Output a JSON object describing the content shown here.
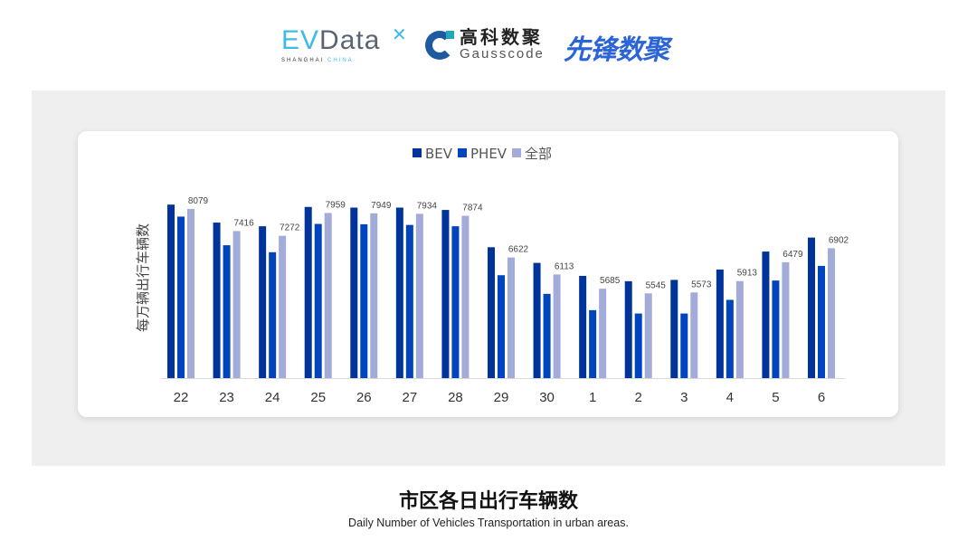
{
  "logos": {
    "evdata": {
      "name": "EVData",
      "tagline_a": "SHANGHAI",
      "tagline_b": "CHINA"
    },
    "gausscode": {
      "cn": "高科数聚",
      "en": "Gausscode"
    },
    "xianfeng": {
      "cn": "先锋数聚"
    }
  },
  "caption": {
    "title": "市区各日出行车辆数",
    "subtitle": "Daily Number of Vehicles Transportation in urban areas."
  },
  "chart_data": {
    "type": "bar",
    "title": "",
    "xlabel": "",
    "ylabel": "每万辆出行车辆数",
    "ylim": [
      3000,
      9000
    ],
    "grid": false,
    "legend_position": "top-center",
    "categories": [
      "22",
      "23",
      "24",
      "25",
      "26",
      "27",
      "28",
      "29",
      "30",
      "1",
      "2",
      "3",
      "4",
      "5",
      "6"
    ],
    "series": [
      {
        "name": "BEV",
        "color": "#00349A",
        "values": [
          8210,
          7670,
          7560,
          8140,
          8120,
          8120,
          8050,
          6930,
          6460,
          6070,
          5910,
          5950,
          6260,
          6800,
          7220
        ]
      },
      {
        "name": "PHEV",
        "color": "#0045BD",
        "values": [
          7850,
          6990,
          6780,
          7630,
          7620,
          7600,
          7560,
          6090,
          5530,
          5040,
          4940,
          4940,
          5350,
          5930,
          6370
        ]
      },
      {
        "name": "全部",
        "color": "#A3ABD8",
        "values": [
          8079,
          7416,
          7272,
          7959,
          7949,
          7934,
          7874,
          6622,
          6113,
          5685,
          5545,
          5573,
          5913,
          6479,
          6902
        ],
        "labels": [
          "8079",
          "7416",
          "7272",
          "7959",
          "7949",
          "7934",
          "7874",
          "6622",
          "6113",
          "5685",
          "5545",
          "5573",
          "5913",
          "6479",
          "6902"
        ]
      }
    ]
  }
}
